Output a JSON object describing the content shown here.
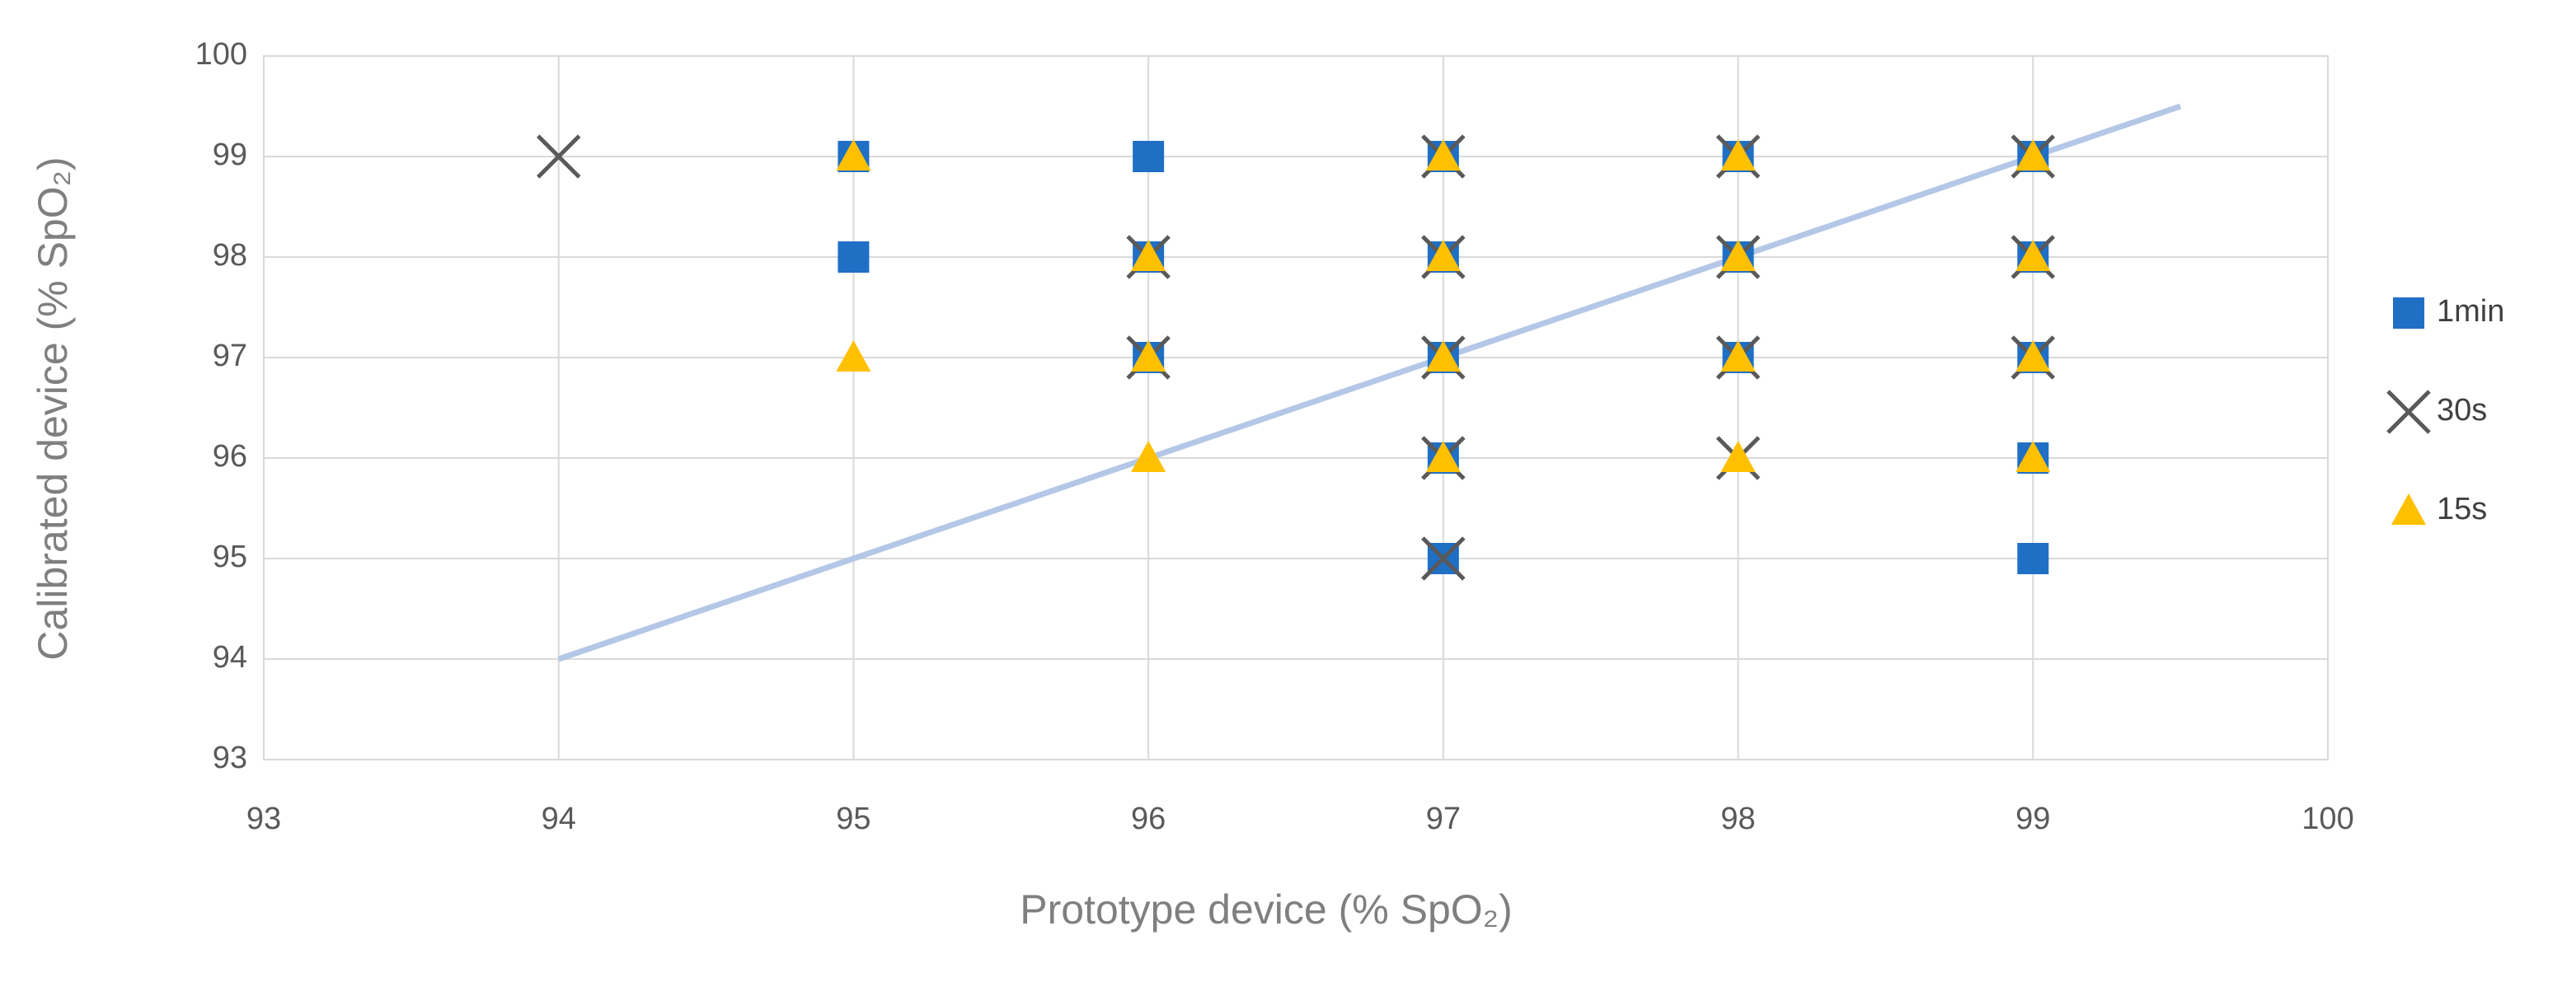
{
  "chart_data": {
    "type": "scatter",
    "x_label": "Prototype device (% SpO₂)",
    "y_label": "Calibrated device (% SpO₂)",
    "xlim": [
      93,
      100
    ],
    "xticks": [
      93,
      94,
      95,
      96,
      97,
      98,
      99,
      100
    ],
    "ylim": [
      93,
      100
    ],
    "yticks": [
      93,
      94,
      95,
      96,
      97,
      98,
      99,
      100
    ],
    "grid": true,
    "legend": "right",
    "series": [
      {
        "type": "line",
        "color": "#b4c7e7",
        "x": [
          94,
          99.5
        ],
        "values": [
          94,
          99.5
        ]
      },
      {
        "name": "1min",
        "marker": "square",
        "color": "#1f6fc5",
        "x": [
          95,
          95,
          96,
          96,
          96,
          97,
          97,
          97,
          97,
          97,
          98,
          98,
          98,
          99,
          99,
          99,
          99,
          99
        ],
        "values": [
          99,
          98,
          99,
          98,
          97,
          99,
          98,
          97,
          96,
          95,
          99,
          98,
          97,
          99,
          98,
          97,
          96,
          95
        ]
      },
      {
        "name": "30s",
        "marker": "x",
        "color": "#595959",
        "x": [
          94,
          96,
          96,
          97,
          97,
          97,
          97,
          97,
          98,
          98,
          98,
          98,
          99,
          99,
          99
        ],
        "values": [
          99,
          98,
          97,
          99,
          98,
          97,
          96,
          95,
          99,
          98,
          97,
          96,
          99,
          98,
          97
        ]
      },
      {
        "name": "15s",
        "marker": "triangle",
        "color": "#ffc000",
        "x": [
          95,
          95,
          96,
          96,
          96,
          97,
          97,
          97,
          97,
          98,
          98,
          98,
          98,
          99,
          99,
          99,
          99
        ],
        "values": [
          99,
          97,
          98,
          97,
          96,
          99,
          98,
          97,
          96,
          99,
          98,
          97,
          96,
          99,
          98,
          97,
          96
        ]
      }
    ]
  }
}
